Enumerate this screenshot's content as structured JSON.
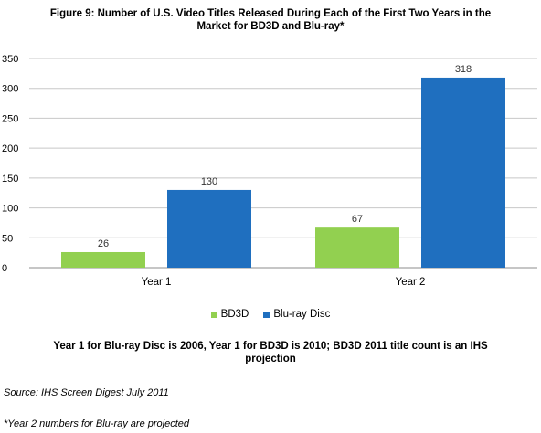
{
  "title_line1": "Figure 9: Number of U.S. Video Titles Released During Each of the First Two Years in the",
  "title_line2": "Market for BD3D and Blu-ray*",
  "note_line1": "Year 1 for Blu-ray Disc is 2006, Year 1 for BD3D is 2010; BD3D 2011 title count is an IHS",
  "note_line2": "projection",
  "source": "Source: IHS Screen Digest July 2011",
  "footnote": "*Year 2 numbers for Blu-ray are projected",
  "chart_data": {
    "type": "bar",
    "categories": [
      "Year 1",
      "Year 2"
    ],
    "series": [
      {
        "name": "BD3D",
        "values": [
          26,
          67
        ],
        "color": "#92d050"
      },
      {
        "name": "Blu-ray Disc",
        "values": [
          130,
          318
        ],
        "color": "#1f6fbf"
      }
    ],
    "ylim": [
      0,
      350
    ],
    "yticks": [
      0,
      50,
      100,
      150,
      200,
      250,
      300,
      350
    ],
    "grid": true,
    "legend": "bottom"
  }
}
